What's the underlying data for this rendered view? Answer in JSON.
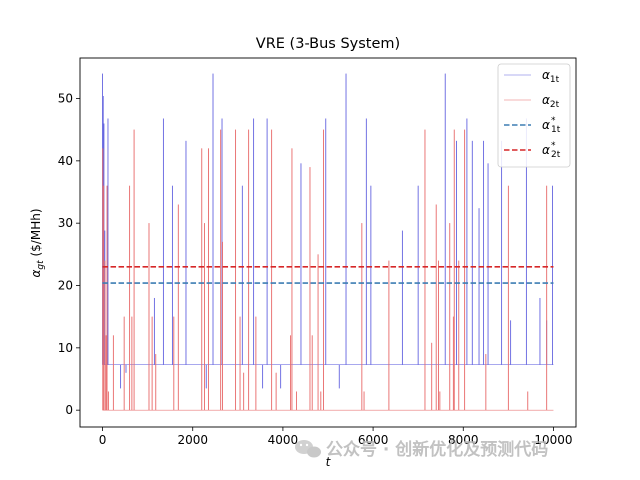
{
  "chart_data": {
    "type": "line",
    "title": "VRE (3-Bus System)",
    "xlabel": "t",
    "ylabel": "α_gt ($/MHh)",
    "xlim": [
      -500,
      10500
    ],
    "ylim": [
      -2.7,
      56.5
    ],
    "x_ticks": [
      0,
      2000,
      4000,
      6000,
      8000,
      10000
    ],
    "y_ticks": [
      0,
      10,
      20,
      30,
      40,
      50
    ],
    "grid": false,
    "legend_position": "top-right",
    "series": [
      {
        "name": "α_1t",
        "style": "thin-line",
        "color": "#6666e0",
        "baseline": 7.3,
        "spikes": [
          {
            "x": 0,
            "y": 54.0
          },
          {
            "x": 15,
            "y": 50.4
          },
          {
            "x": 30,
            "y": 46.0
          },
          {
            "x": 50,
            "y": 28.8
          },
          {
            "x": 90,
            "y": 7.3
          },
          {
            "x": 120,
            "y": 46.8
          },
          {
            "x": 400,
            "y": 3.5
          },
          {
            "x": 520,
            "y": 6.0
          },
          {
            "x": 1150,
            "y": 18.0
          },
          {
            "x": 1350,
            "y": 46.8
          },
          {
            "x": 1550,
            "y": 36.0
          },
          {
            "x": 1850,
            "y": 43.2
          },
          {
            "x": 2300,
            "y": 3.5
          },
          {
            "x": 2450,
            "y": 54.0
          },
          {
            "x": 2650,
            "y": 46.8
          },
          {
            "x": 3100,
            "y": 36.0
          },
          {
            "x": 3350,
            "y": 46.8
          },
          {
            "x": 3550,
            "y": 3.5
          },
          {
            "x": 3650,
            "y": 46.8
          },
          {
            "x": 3950,
            "y": 3.5
          },
          {
            "x": 4400,
            "y": 39.6
          },
          {
            "x": 4950,
            "y": 46.8
          },
          {
            "x": 5250,
            "y": 3.5
          },
          {
            "x": 5400,
            "y": 54.0
          },
          {
            "x": 5850,
            "y": 46.8
          },
          {
            "x": 5950,
            "y": 36.0
          },
          {
            "x": 6650,
            "y": 28.8
          },
          {
            "x": 7000,
            "y": 36.0
          },
          {
            "x": 7600,
            "y": 54.0
          },
          {
            "x": 7850,
            "y": 43.2
          },
          {
            "x": 8080,
            "y": 46.8
          },
          {
            "x": 8200,
            "y": 43.2
          },
          {
            "x": 8350,
            "y": 32.4
          },
          {
            "x": 8450,
            "y": 43.2
          },
          {
            "x": 8550,
            "y": 39.6
          },
          {
            "x": 8850,
            "y": 43.2
          },
          {
            "x": 9050,
            "y": 14.4
          },
          {
            "x": 9400,
            "y": 46.8
          },
          {
            "x": 9700,
            "y": 18.0
          },
          {
            "x": 9850,
            "y": 14.4
          },
          {
            "x": 9980,
            "y": 36.0
          }
        ]
      },
      {
        "name": "α_2t",
        "style": "thin-line",
        "color": "#e86a6a",
        "baseline": 0,
        "spikes": [
          {
            "x": 5,
            "y": 42.0
          },
          {
            "x": 25,
            "y": 36.0
          },
          {
            "x": 55,
            "y": 24.0
          },
          {
            "x": 80,
            "y": 12.0
          },
          {
            "x": 100,
            "y": 36.0
          },
          {
            "x": 130,
            "y": 3.0
          },
          {
            "x": 240,
            "y": 12.0
          },
          {
            "x": 480,
            "y": 15.0
          },
          {
            "x": 600,
            "y": 36.0
          },
          {
            "x": 650,
            "y": 15.0
          },
          {
            "x": 700,
            "y": 45.0
          },
          {
            "x": 1030,
            "y": 30.0
          },
          {
            "x": 1100,
            "y": 15.0
          },
          {
            "x": 1180,
            "y": 9.0
          },
          {
            "x": 1580,
            "y": 15.0
          },
          {
            "x": 1680,
            "y": 33.0
          },
          {
            "x": 2200,
            "y": 42.0
          },
          {
            "x": 2260,
            "y": 30.0
          },
          {
            "x": 2350,
            "y": 42.0
          },
          {
            "x": 2620,
            "y": 45.0
          },
          {
            "x": 2660,
            "y": 27.0
          },
          {
            "x": 2950,
            "y": 45.0
          },
          {
            "x": 3050,
            "y": 15.0
          },
          {
            "x": 3130,
            "y": 6.0
          },
          {
            "x": 3240,
            "y": 45.0
          },
          {
            "x": 3400,
            "y": 15.0
          },
          {
            "x": 3750,
            "y": 45.0
          },
          {
            "x": 3850,
            "y": 6.0
          },
          {
            "x": 4170,
            "y": 12.0
          },
          {
            "x": 4200,
            "y": 42.0
          },
          {
            "x": 4300,
            "y": 3.0
          },
          {
            "x": 4600,
            "y": 39.0
          },
          {
            "x": 4650,
            "y": 12.0
          },
          {
            "x": 4780,
            "y": 25.0
          },
          {
            "x": 4840,
            "y": 3.0
          },
          {
            "x": 4900,
            "y": 45.0
          },
          {
            "x": 5750,
            "y": 30.0
          },
          {
            "x": 5800,
            "y": 3.0
          },
          {
            "x": 6350,
            "y": 24.0
          },
          {
            "x": 7150,
            "y": 45.0
          },
          {
            "x": 7300,
            "y": 10.8
          },
          {
            "x": 7400,
            "y": 33.0
          },
          {
            "x": 7450,
            "y": 24.0
          },
          {
            "x": 7480,
            "y": 3.0
          },
          {
            "x": 7700,
            "y": 30.0
          },
          {
            "x": 7780,
            "y": 15.0
          },
          {
            "x": 7800,
            "y": 45.0
          },
          {
            "x": 7900,
            "y": 24.0
          },
          {
            "x": 8030,
            "y": 45.0
          },
          {
            "x": 8500,
            "y": 9.0
          },
          {
            "x": 9000,
            "y": 36.0
          },
          {
            "x": 9430,
            "y": 3.0
          },
          {
            "x": 9850,
            "y": 36.0
          }
        ]
      },
      {
        "name": "α*_1t",
        "style": "dashed",
        "color": "#3d7db3",
        "x": [
          0,
          10000
        ],
        "values": [
          20.4,
          20.4
        ]
      },
      {
        "name": "α*_2t",
        "style": "dashed",
        "color": "#d62728",
        "x": [
          0,
          10000
        ],
        "values": [
          23.0,
          23.0
        ]
      }
    ],
    "legend": {
      "entries": [
        {
          "main": "α",
          "sub": "1t",
          "sup": ""
        },
        {
          "main": "α",
          "sub": "2t",
          "sup": ""
        },
        {
          "main": "α",
          "sub": "1t",
          "sup": "*"
        },
        {
          "main": "α",
          "sub": "2t",
          "sup": "*"
        }
      ]
    }
  },
  "watermark": {
    "text": "公众号 · 创新优化及预测代码",
    "icon": "wechat-icon"
  }
}
